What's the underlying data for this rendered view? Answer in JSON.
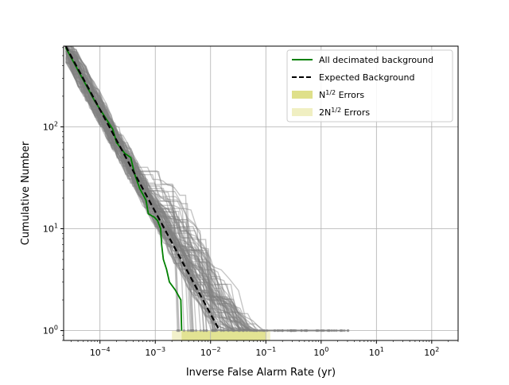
{
  "chart_data": {
    "type": "line",
    "title": "",
    "xlabel": "Inverse False Alarm Rate (yr)",
    "ylabel": "Cumulative Number",
    "x_scale": "log",
    "y_scale": "log",
    "xlim": [
      2.2e-05,
      300
    ],
    "ylim": [
      0.8,
      620
    ],
    "grid": true,
    "legend_position": "top-right",
    "x_ticks": [
      {
        "base": "10",
        "exp": "−4",
        "value": 0.0001
      },
      {
        "base": "10",
        "exp": "−3",
        "value": 0.001
      },
      {
        "base": "10",
        "exp": "−2",
        "value": 0.01
      },
      {
        "base": "10",
        "exp": "−1",
        "value": 0.1
      },
      {
        "base": "10",
        "exp": "0",
        "value": 1
      },
      {
        "base": "10",
        "exp": "1",
        "value": 10
      },
      {
        "base": "10",
        "exp": "2",
        "value": 100
      }
    ],
    "y_ticks": [
      {
        "base": "10",
        "exp": "0",
        "value": 1
      },
      {
        "base": "10",
        "exp": "1",
        "value": 10
      },
      {
        "base": "10",
        "exp": "2",
        "value": 100
      }
    ],
    "legend": [
      {
        "label_html": "All decimated background",
        "style": "line",
        "color": "#008000"
      },
      {
        "label_html": "Expected Background",
        "style": "dashed",
        "color": "#000000"
      },
      {
        "label_html": "N<tspan baseline-shift=\"super\" font-size=\"8\">1/2</tspan> Errors",
        "style": "patch",
        "color": "#dfe08a"
      },
      {
        "label_html": "2N<tspan baseline-shift=\"super\" font-size=\"8\">1/2</tspan> Errors",
        "style": "patch",
        "color": "#f0efc2"
      }
    ],
    "series": [
      {
        "name": "All decimated background",
        "color": "#008000",
        "x": [
          2.4e-05,
          4.5e-05,
          8e-05,
          0.00017,
          0.0002,
          0.00028,
          0.00036,
          0.00042,
          0.00052,
          0.00068,
          0.00075,
          0.00095,
          0.0011,
          0.00125,
          0.0013,
          0.0014,
          0.0016,
          0.0018,
          0.0023,
          0.0029,
          0.003
        ],
        "y": [
          600,
          320,
          180,
          95,
          70,
          55,
          50,
          35,
          25,
          19,
          14,
          13,
          12,
          10,
          7,
          5,
          4,
          3,
          2.5,
          2,
          1
        ]
      },
      {
        "name": "Expected Background",
        "color": "#000000",
        "x": [
          2.4e-05,
          0.0145
        ],
        "y": [
          620,
          1
        ]
      }
    ],
    "error_bands": [
      {
        "name": "N^1/2 Errors",
        "color": "#dfe08a",
        "x": [
          0.003,
          0.1
        ],
        "y_low": 0.8,
        "y_high": 1.0
      },
      {
        "name": "2N^1/2 Errors",
        "color": "#f0efc2",
        "x": [
          0.002,
          0.12
        ],
        "y_low": 0.8,
        "y_high": 1.0
      }
    ],
    "background_realisations": {
      "count": 90,
      "color": "#808080",
      "x_extent": [
        2.4e-05,
        3.5
      ]
    }
  }
}
